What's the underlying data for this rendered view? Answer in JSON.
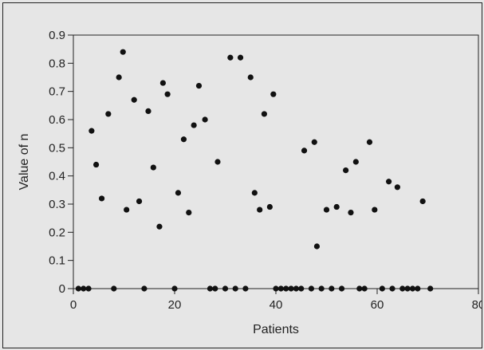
{
  "chart_data": {
    "type": "scatter",
    "title": "",
    "xlabel": "Patients",
    "ylabel": "Value of n",
    "xlim": [
      0,
      80
    ],
    "ylim": [
      0,
      0.9
    ],
    "x_ticks": [
      "0",
      "20",
      "40",
      "60",
      "80"
    ],
    "y_ticks": [
      "0",
      "0.1",
      "0.2",
      "0.3",
      "0.4",
      "0.5",
      "0.6",
      "0.7",
      "0.8",
      "0.9"
    ],
    "grid": false,
    "legend": "none",
    "marker_color": "#111111",
    "background_color": "#e6e6e6",
    "points": [
      [
        1,
        0
      ],
      [
        2,
        0
      ],
      [
        3,
        0
      ],
      [
        3.6,
        0.56
      ],
      [
        4.5,
        0.44
      ],
      [
        5.6,
        0.32
      ],
      [
        6.9,
        0.62
      ],
      [
        8,
        0
      ],
      [
        9,
        0.75
      ],
      [
        9.8,
        0.84
      ],
      [
        10.5,
        0.28
      ],
      [
        12,
        0.67
      ],
      [
        13,
        0.31
      ],
      [
        14,
        0
      ],
      [
        14.8,
        0.63
      ],
      [
        15.8,
        0.43
      ],
      [
        17,
        0.22
      ],
      [
        17.7,
        0.73
      ],
      [
        18.6,
        0.69
      ],
      [
        20,
        0
      ],
      [
        20.7,
        0.34
      ],
      [
        21.8,
        0.53
      ],
      [
        22.8,
        0.27
      ],
      [
        23.8,
        0.58
      ],
      [
        24.8,
        0.72
      ],
      [
        26,
        0.6
      ],
      [
        27,
        0
      ],
      [
        28,
        0
      ],
      [
        28.5,
        0.45
      ],
      [
        30,
        0
      ],
      [
        31,
        0.82
      ],
      [
        32,
        0
      ],
      [
        33,
        0.82
      ],
      [
        34,
        0
      ],
      [
        35,
        0.75
      ],
      [
        35.8,
        0.34
      ],
      [
        36.8,
        0.28
      ],
      [
        37.7,
        0.62
      ],
      [
        38.8,
        0.29
      ],
      [
        39.5,
        0.69
      ],
      [
        40,
        0
      ],
      [
        41,
        0
      ],
      [
        42,
        0
      ],
      [
        43,
        0
      ],
      [
        44,
        0
      ],
      [
        45,
        0
      ],
      [
        45.6,
        0.49
      ],
      [
        47,
        0
      ],
      [
        47.6,
        0.52
      ],
      [
        48.1,
        0.15
      ],
      [
        49,
        0
      ],
      [
        50,
        0.28
      ],
      [
        51,
        0
      ],
      [
        52,
        0.29
      ],
      [
        53,
        0
      ],
      [
        53.8,
        0.42
      ],
      [
        54.8,
        0.27
      ],
      [
        55.8,
        0.45
      ],
      [
        56.5,
        0
      ],
      [
        57.5,
        0
      ],
      [
        58.5,
        0.52
      ],
      [
        59.5,
        0.28
      ],
      [
        61,
        0
      ],
      [
        62.3,
        0.38
      ],
      [
        63,
        0
      ],
      [
        64,
        0.36
      ],
      [
        65,
        0
      ],
      [
        66,
        0
      ],
      [
        67,
        0
      ],
      [
        68,
        0
      ],
      [
        69,
        0.31
      ],
      [
        70.5,
        0
      ]
    ]
  }
}
